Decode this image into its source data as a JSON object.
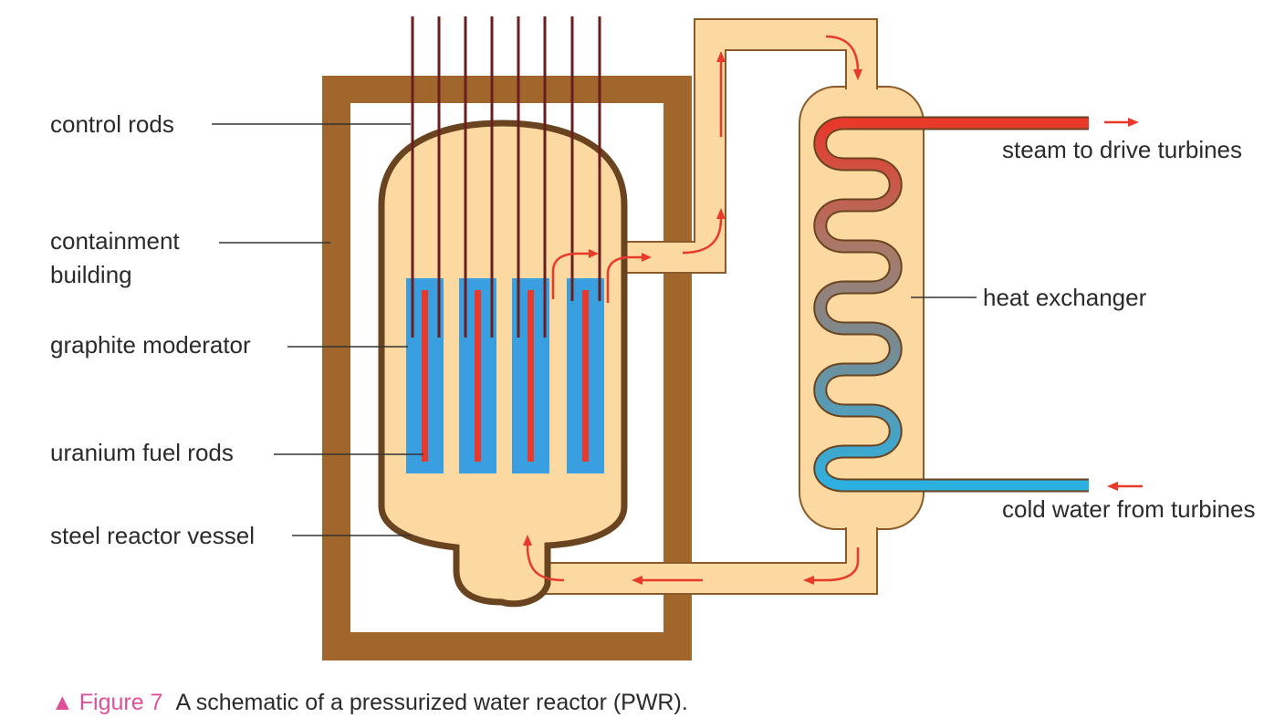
{
  "diagram": {
    "labels": {
      "control_rods": "control rods",
      "containment_line1": "containment",
      "containment_line2": "building",
      "graphite_moderator": "graphite moderator",
      "uranium_fuel_rods": "uranium fuel rods",
      "steel_reactor_vessel": "steel reactor vessel",
      "steam": "steam to drive turbines",
      "heat_exchanger": "heat exchanger",
      "cold_water": "cold water from turbines"
    },
    "colors": {
      "containment": "#a0662b",
      "vessel_fill": "#fcd9a1",
      "vessel_outline": "#6a4420",
      "moderator": "#3a9fe0",
      "fuel_rod": "#e8392a",
      "control_rod": "#6a1e1e",
      "flow_arrow": "#e8392a",
      "steam_pipe": "#e8392a",
      "cold_pipe": "#2cb0e0",
      "leader_line": "#333333"
    }
  },
  "caption": {
    "marker": "▲",
    "figure_number": "Figure 7",
    "text": "A schematic of a pressurized water reactor (PWR)."
  }
}
